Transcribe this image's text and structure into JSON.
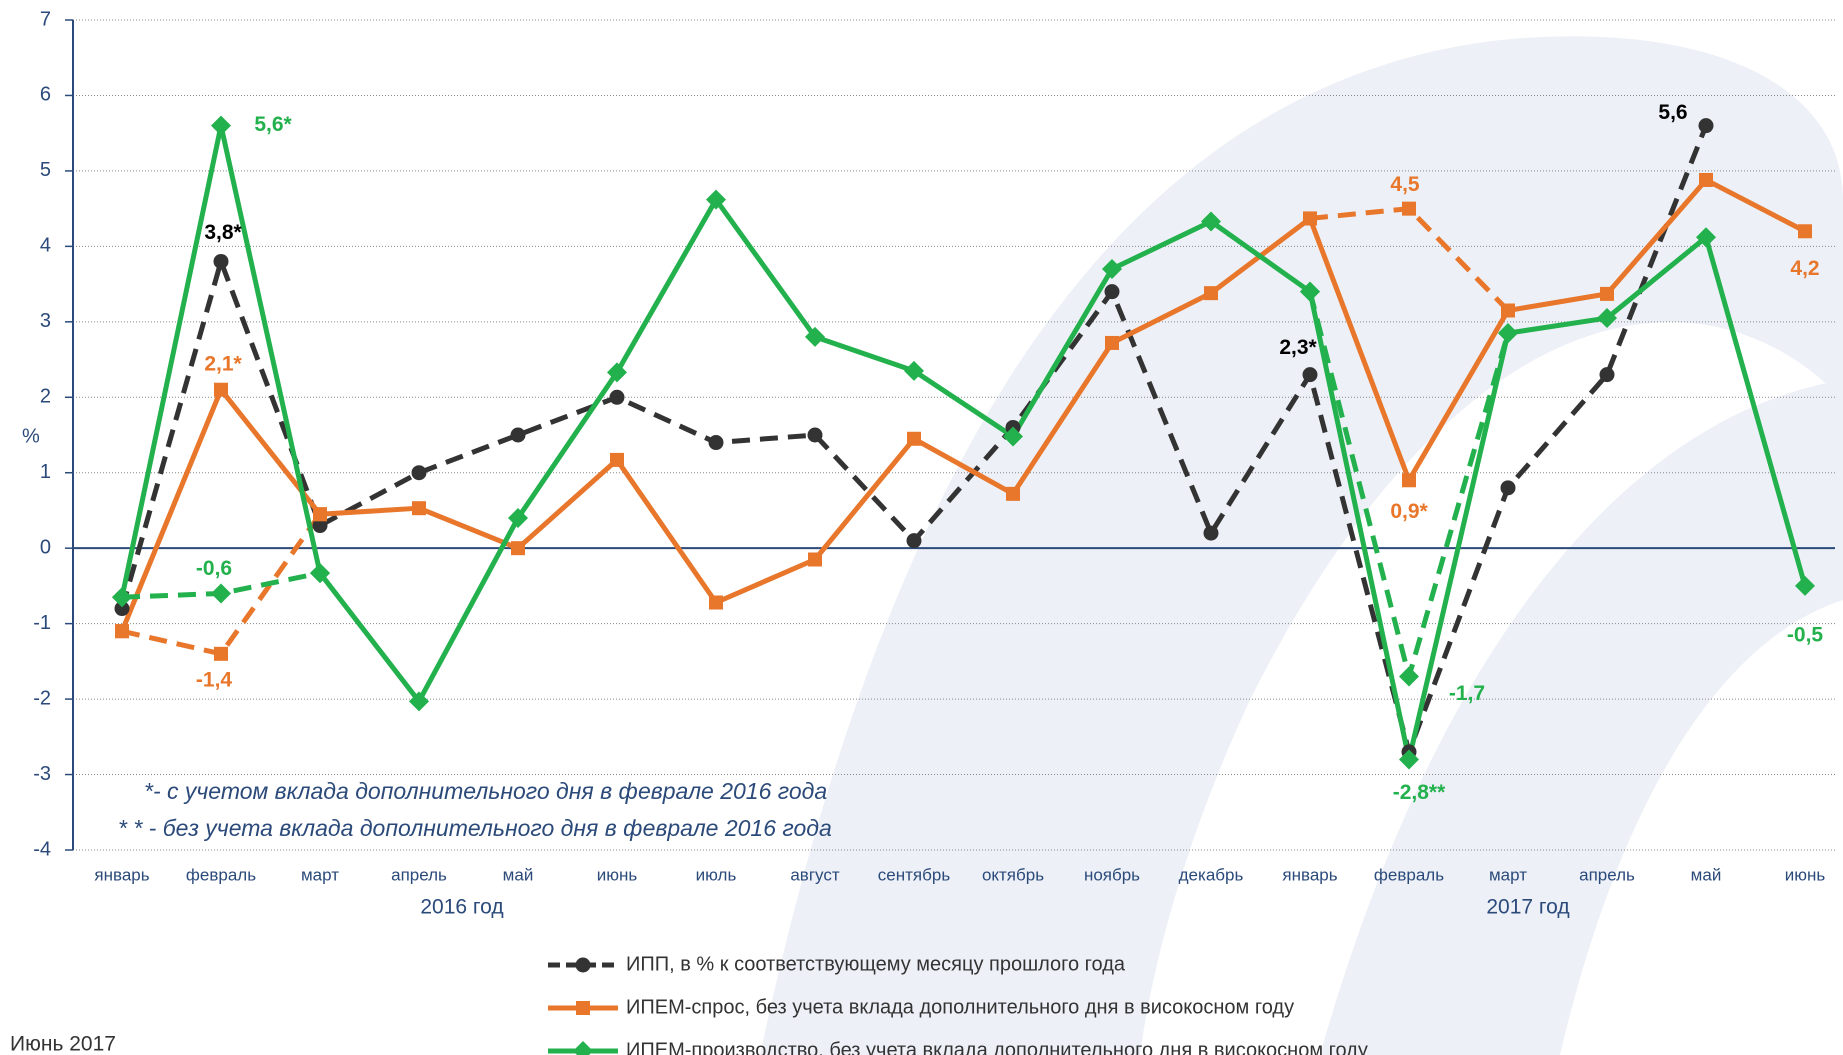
{
  "chart_data": {
    "type": "line",
    "ylabel": "%",
    "categories": [
      "январь",
      "февраль",
      "март",
      "апрель",
      "май",
      "июнь",
      "июль",
      "август",
      "сентябрь",
      "октябрь",
      "ноябрь",
      "декабрь",
      "январь",
      "февраль",
      "март",
      "апрель",
      "май",
      "июнь"
    ],
    "year_labels": [
      "2016 год",
      "2017 год"
    ],
    "ylim": [
      -4,
      7
    ],
    "yticks": [
      -4,
      -3,
      -2,
      -1,
      0,
      1,
      2,
      3,
      4,
      5,
      6,
      7
    ],
    "grid": true,
    "series": [
      {
        "name": "ИПП, в % к соответствующему месяцу прошлого года",
        "color": "#333333",
        "marker": "circle",
        "dashed": true,
        "values": [
          -0.8,
          3.8,
          0.3,
          1.0,
          1.5,
          2.0,
          1.4,
          1.5,
          0.1,
          1.6,
          3.4,
          0.2,
          2.3,
          -2.7,
          0.8,
          2.3,
          5.6,
          null
        ],
        "value_labels": [
          null,
          "3,8*",
          null,
          null,
          null,
          null,
          null,
          null,
          null,
          null,
          null,
          null,
          "2,3*",
          null,
          null,
          null,
          "5,6",
          null
        ]
      },
      {
        "name": "ИПЕМ-спрос, без учета вклада дополнительного дня в високосном году",
        "color": "#e8762b",
        "marker": "square",
        "dashed": false,
        "values": [
          -1.1,
          2.1,
          0.45,
          0.53,
          0.0,
          1.17,
          -0.72,
          -0.15,
          1.45,
          0.72,
          2.72,
          3.38,
          4.37,
          0.9,
          3.15,
          3.37,
          4.88,
          4.2
        ],
        "value_labels": [
          null,
          "2,1*",
          null,
          null,
          null,
          null,
          null,
          null,
          null,
          null,
          null,
          null,
          null,
          "0,9*",
          null,
          null,
          null,
          "4,2"
        ],
        "alt_values": [
          -1.1,
          -1.4,
          0.45,
          null,
          null,
          null,
          null,
          null,
          null,
          null,
          null,
          null,
          4.37,
          4.5,
          3.15,
          null,
          null,
          null
        ],
        "alt_value_labels": [
          null,
          "-1,4",
          null,
          null,
          null,
          null,
          null,
          null,
          null,
          null,
          null,
          null,
          null,
          "4,5",
          null,
          null,
          null,
          null
        ]
      },
      {
        "name": "ИПЕМ-производство, без учета вклада дополнительного дня в високосном году",
        "color": "#22b14c",
        "marker": "diamond",
        "dashed": false,
        "values": [
          -0.65,
          5.6,
          -0.33,
          -2.03,
          0.4,
          2.33,
          4.62,
          2.8,
          2.35,
          1.48,
          3.7,
          4.33,
          3.4,
          -2.8,
          2.85,
          3.05,
          4.12,
          -0.5
        ],
        "value_labels": [
          null,
          "5,6*",
          null,
          null,
          null,
          null,
          null,
          null,
          null,
          null,
          null,
          null,
          null,
          "-2,8**",
          null,
          null,
          null,
          "-0,5"
        ],
        "alt_values": [
          -0.65,
          -0.6,
          -0.33,
          null,
          null,
          null,
          null,
          null,
          null,
          null,
          null,
          null,
          3.4,
          -1.7,
          2.85,
          null,
          null,
          null
        ],
        "alt_value_labels": [
          null,
          "-0,6",
          null,
          null,
          null,
          null,
          null,
          null,
          null,
          null,
          null,
          null,
          null,
          "-1,7",
          null,
          null,
          null,
          null
        ]
      }
    ],
    "footnotes": [
      "*- с учетом вклада дополнительного дня в феврале 2016 года",
      "* * - без учета вклада дополнительного дня в феврале 2016 года"
    ],
    "date_note": "Июнь 2017"
  }
}
